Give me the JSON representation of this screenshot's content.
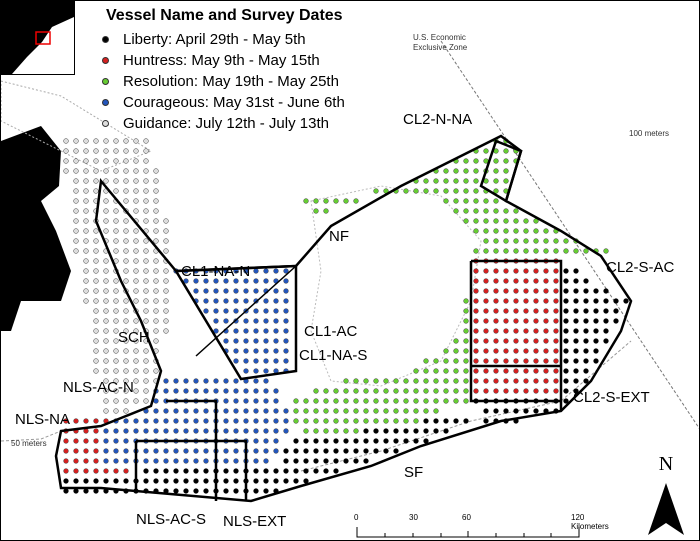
{
  "legend": {
    "title": "Vessel Name and Survey Dates",
    "items": [
      {
        "label": "Liberty: April 29th - May 5th",
        "color": "#000000"
      },
      {
        "label": "Huntress: May 9th - May 15th",
        "color": "#d42020"
      },
      {
        "label": "Resolution: May 19th - May 25th",
        "color": "#66cc33"
      },
      {
        "label": "Courageous: May 31st - June 6th",
        "color": "#2255bb"
      },
      {
        "label": "Guidance: July 12th - July 13th",
        "color": "#dddddd"
      }
    ]
  },
  "annotations": {
    "eez": "U.S. Economic\nExclusive Zone",
    "depth_100": "100 meters",
    "depth_50": "50 meters"
  },
  "regions": [
    "CL2-N-NA",
    "NF",
    "CL1-NA-N",
    "CL2-S-AC",
    "SCH",
    "CL1-AC",
    "CL1-NA-S",
    "NLS-AC-N",
    "CL2-S-EXT",
    "NLS-NA",
    "SF",
    "NLS-AC-S",
    "NLS-EXT"
  ],
  "scale_bar": {
    "ticks": [
      "0",
      "30",
      "60",
      "120 Kilometers"
    ]
  },
  "north_arrow": "N"
}
